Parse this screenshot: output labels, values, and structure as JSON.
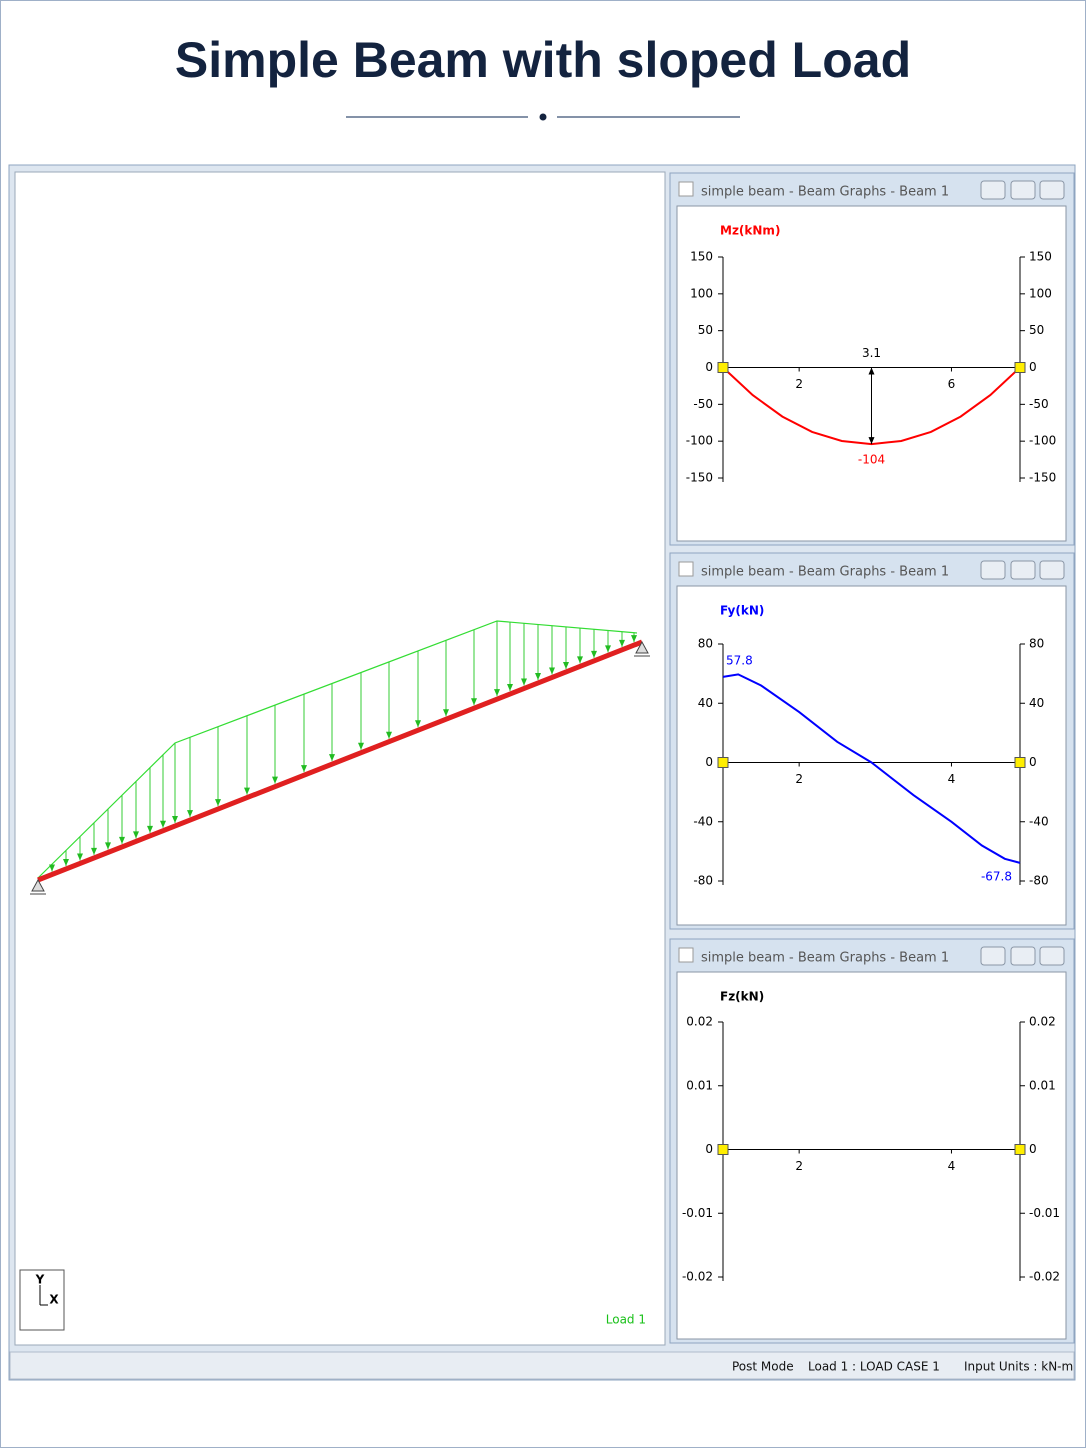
{
  "header": {
    "title": "Simple Beam with sloped Load"
  },
  "viewport": {
    "load_label": "Load 1",
    "axis_y": "Y",
    "axis_x": "X"
  },
  "windows": [
    {
      "title": "simple beam - Beam Graphs - Beam 1"
    },
    {
      "title": "simple beam - Beam Graphs - Beam 1"
    },
    {
      "title": "simple beam - Beam Graphs - Beam 1"
    }
  ],
  "chart_data": [
    {
      "type": "line",
      "y_label": "Mz(kNm)",
      "color": "#ff0000",
      "x": [
        0,
        0.78,
        1.56,
        2.34,
        3.12,
        3.9,
        4.68,
        5.46,
        6.24,
        7.02,
        7.8
      ],
      "values": [
        0,
        -37.4,
        -66.6,
        -87.4,
        -99.8,
        -104,
        -99.8,
        -87.4,
        -66.6,
        -37.4,
        0
      ],
      "value_labels": [
        null,
        null,
        null,
        null,
        null,
        "-104",
        null,
        null,
        null,
        null,
        null
      ],
      "annotation": "3.1",
      "xlim": [
        0,
        7.8
      ],
      "xticks": [
        2,
        6
      ],
      "ylim": [
        -150,
        150
      ],
      "yticks": [
        150,
        100,
        50,
        0,
        -50,
        -100,
        -150
      ]
    },
    {
      "type": "line",
      "y_label": "Fy(kN)",
      "color": "#0000ff",
      "x": [
        1,
        1.2,
        1.5,
        2,
        2.5,
        2.95,
        3.5,
        4,
        4.4,
        4.7,
        4.9
      ],
      "values": [
        57.8,
        59.5,
        52,
        34,
        14,
        0,
        -22,
        -40,
        -56,
        -65,
        -67.8
      ],
      "value_labels": [
        "57.8",
        null,
        null,
        null,
        null,
        null,
        null,
        null,
        null,
        null,
        "-67.8"
      ],
      "xlim": [
        1,
        4.9
      ],
      "xticks": [
        2,
        4
      ],
      "ylim": [
        -80,
        80
      ],
      "yticks": [
        80,
        40,
        0,
        -40,
        -80
      ]
    },
    {
      "type": "axes",
      "y_label": "Fz(kN)",
      "color": "#000000",
      "xlim": [
        1,
        4.9
      ],
      "xticks": [
        2,
        4
      ],
      "ylim": [
        -0.02,
        0.02
      ],
      "yticks": [
        0.02,
        0.01,
        0,
        -0.01,
        -0.02
      ]
    }
  ],
  "status_bar": {
    "mode": "Post Mode",
    "load_case": "Load 1 : LOAD CASE 1",
    "units": "Input Units : kN-m"
  }
}
